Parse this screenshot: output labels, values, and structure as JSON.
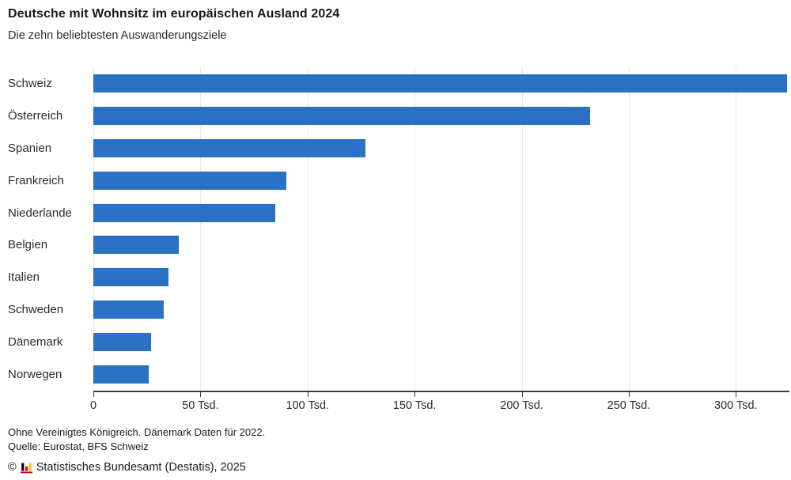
{
  "header": {
    "title": "Deutsche mit Wohnsitz im europäischen Ausland 2024",
    "subtitle": "Die zehn beliebtesten Auswanderungsziele"
  },
  "chart_data": {
    "type": "bar",
    "orientation": "horizontal",
    "title": "Deutsche mit Wohnsitz im europäischen Ausland 2024",
    "subtitle": "Die zehn beliebtesten Auswanderungsziele",
    "categories": [
      "Schweiz",
      "Österreich",
      "Spanien",
      "Frankreich",
      "Niederlande",
      "Belgien",
      "Italien",
      "Schweden",
      "Dänemark",
      "Norwegen"
    ],
    "values": [
      324,
      232,
      127,
      90,
      85,
      40,
      35,
      33,
      27,
      26
    ],
    "unit": "Tsd.",
    "xlabel": "",
    "ylabel": "",
    "xlim": [
      0,
      325
    ],
    "xticks": [
      0,
      50,
      100,
      150,
      200,
      250,
      300
    ],
    "xtick_labels": [
      "0",
      "50 Tsd.",
      "100 Tsd.",
      "150 Tsd.",
      "200 Tsd.",
      "250 Tsd.",
      "300 Tsd."
    ],
    "grid": "vertical",
    "legend": "none",
    "bar_color": "#2a70c4",
    "gridline_color": "#e8e8e8",
    "axis_color": "#3d3d3d"
  },
  "footnotes": {
    "line1": "Ohne Vereinigtes Königreich. Dänemark Daten für 2022.",
    "line2": "Quelle: Eurostat, BFS Schweiz"
  },
  "copyright": {
    "symbol": "©",
    "text": "Statistisches Bundesamt (Destatis), 2025",
    "icon_colors": {
      "bar1": "#000000",
      "bar2": "#e2001a",
      "bar3": "#f6c400",
      "baseline": "#b0001d"
    }
  }
}
